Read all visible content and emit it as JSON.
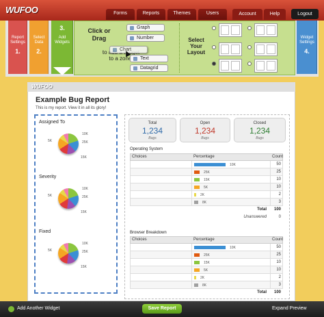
{
  "nav": {
    "logo": "WUFOO",
    "tabs": [
      "Forms",
      "Reports",
      "Themes",
      "Users"
    ],
    "account": "Account",
    "help": "Help",
    "logout": "Logout"
  },
  "steps": [
    {
      "label": "Report Settings",
      "number": "1."
    },
    {
      "label": "Select Data",
      "number": "2."
    },
    {
      "label": "Add Widgets",
      "number": "3."
    },
    {
      "label": "Widget Settings",
      "number": "4."
    }
  ],
  "widget_panel": {
    "instruction_top": "Click or Drag",
    "instruction_bottom": "to add a widget to a zone.",
    "widgets": [
      "Graph",
      "Number",
      "Chart",
      "Text",
      "Datagrid"
    ],
    "layout_label": "Select Your Layout"
  },
  "report": {
    "logo": "WUFOO",
    "title": "Example Bug Report",
    "description": "This is my report. View it in all its glory!",
    "pie_widgets": [
      {
        "title": "Assigned To",
        "labels": [
          "10K",
          "25K",
          "15K",
          "5K"
        ]
      },
      {
        "title": "Severity",
        "labels": [
          "10K",
          "25K",
          "15K",
          "5K"
        ]
      },
      {
        "title": "Fixed",
        "labels": [
          "10K",
          "25K",
          "15K",
          "5K"
        ]
      }
    ],
    "number_widgets": [
      {
        "label": "Total",
        "value": "1,234",
        "unit": "Bugs"
      },
      {
        "label": "Open",
        "value": "1,234",
        "unit": "Bugs"
      },
      {
        "label": "Closed",
        "value": "1,234",
        "unit": "Bugs"
      }
    ],
    "tables": [
      {
        "title": "Operating System",
        "headers": [
          "Choices",
          "Percentage",
          "Count"
        ],
        "rows": [
          {
            "bar_label": "10K",
            "count": 50
          },
          {
            "bar_label": "25K",
            "count": 25
          },
          {
            "bar_label": "15K",
            "count": 10
          },
          {
            "bar_label": "5K",
            "count": 10
          },
          {
            "bar_label": "2K",
            "count": 2
          },
          {
            "bar_label": "8K",
            "count": 3
          }
        ],
        "total_label": "Total",
        "total": 100,
        "unanswered_label": "Unanswered",
        "unanswered": 0
      },
      {
        "title": "Browser Breakdown",
        "headers": [
          "Choices",
          "Percentage",
          "Count"
        ],
        "rows": [
          {
            "bar_label": "10K",
            "count": 50
          },
          {
            "bar_label": "25K",
            "count": 25
          },
          {
            "bar_label": "15K",
            "count": 10
          },
          {
            "bar_label": "5K",
            "count": 10
          },
          {
            "bar_label": "2K",
            "count": 2
          },
          {
            "bar_label": "8K",
            "count": 3
          }
        ],
        "total_label": "Total",
        "total": 100
      }
    ]
  },
  "footer": {
    "add": "Add Another Widget",
    "save": "Save Report",
    "expand": "Expand Preview"
  }
}
